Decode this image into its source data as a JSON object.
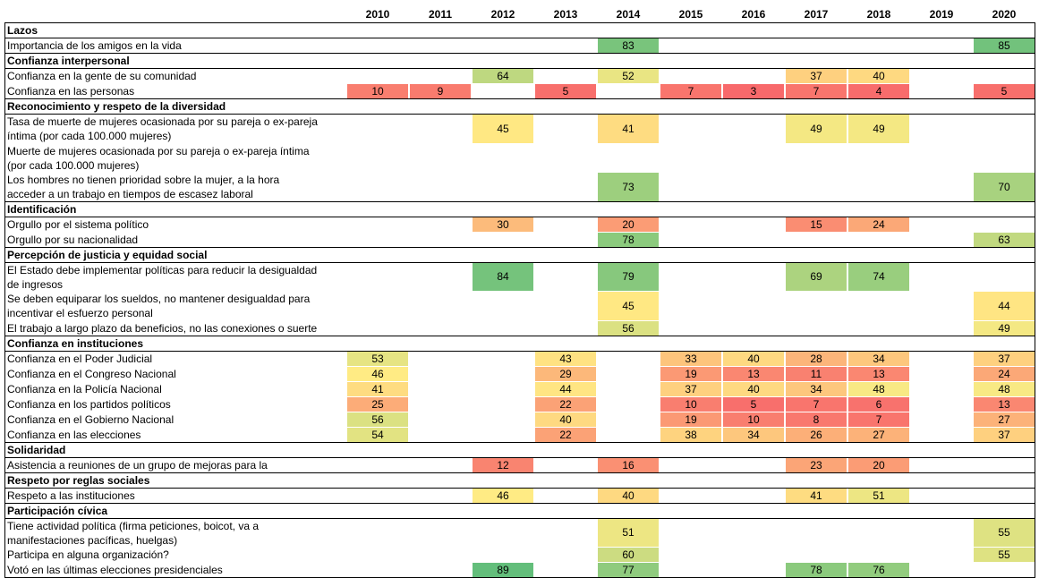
{
  "header": {
    "years": [
      2010,
      2011,
      2012,
      2013,
      2014,
      2015,
      2016,
      2017,
      2018,
      2019,
      2020
    ]
  },
  "color_scale": {
    "low": "#f8696b",
    "mid": "#ffeb84",
    "high": "#63be7b"
  },
  "sections": [
    {
      "title": "Lazos",
      "rows": [
        {
          "label": "Importancia de los amigos en la vida",
          "values": [
            null,
            null,
            null,
            null,
            83,
            null,
            null,
            null,
            null,
            null,
            85
          ]
        }
      ]
    },
    {
      "title": "Confianza interpersonal",
      "rows": [
        {
          "label": "Confianza en la gente de su comunidad",
          "values": [
            null,
            null,
            64,
            null,
            52,
            null,
            null,
            37,
            40,
            null,
            null
          ]
        },
        {
          "label": "Confianza en las personas",
          "values": [
            10,
            9,
            null,
            5,
            null,
            7,
            3,
            7,
            4,
            null,
            5
          ]
        }
      ]
    },
    {
      "title": "Reconocimiento y respeto de la diversidad",
      "rows": [
        {
          "label": "Tasa de muerte de mujeres ocasionada por su pareja o ex-pareja\níntima (por cada 100.000 mujeres)",
          "values": [
            null,
            null,
            45,
            null,
            41,
            null,
            null,
            49,
            49,
            null,
            null
          ]
        },
        {
          "label": "Muerte de mujeres ocasionada por su pareja o ex-pareja íntima\n(por cada 100.000 mujeres)",
          "values": [
            null,
            null,
            null,
            null,
            null,
            null,
            null,
            null,
            null,
            null,
            null
          ]
        },
        {
          "label": "Los hombres no tienen prioridad sobre la mujer, a la hora\nacceder a un trabajo en tiempos de escasez laboral",
          "values": [
            null,
            null,
            null,
            null,
            73,
            null,
            null,
            null,
            null,
            null,
            70
          ]
        }
      ]
    },
    {
      "title": "Identificación",
      "rows": [
        {
          "label": "Orgullo por el sistema político",
          "values": [
            null,
            null,
            30,
            null,
            20,
            null,
            null,
            15,
            24,
            null,
            null
          ]
        },
        {
          "label": "Orgullo por su nacionalidad",
          "values": [
            null,
            null,
            null,
            null,
            78,
            null,
            null,
            null,
            null,
            null,
            63
          ]
        }
      ]
    },
    {
      "title": "Percepción de justicia y equidad social",
      "rows": [
        {
          "label": "El Estado debe implementar políticas para reducir la desigualdad\nde ingresos",
          "values": [
            null,
            null,
            84,
            null,
            79,
            null,
            null,
            69,
            74,
            null,
            null
          ]
        },
        {
          "label": "Se deben equiparar los sueldos, no mantener desigualdad para\nincentivar el esfuerzo personal",
          "values": [
            null,
            null,
            null,
            null,
            45,
            null,
            null,
            null,
            null,
            null,
            44
          ]
        },
        {
          "label": "El trabajo a largo plazo da beneficios, no las conexiones o suerte",
          "values": [
            null,
            null,
            null,
            null,
            56,
            null,
            null,
            null,
            null,
            null,
            49
          ]
        }
      ]
    },
    {
      "title": "Confianza en instituciones",
      "rows": [
        {
          "label": "Confianza en el Poder Judicial",
          "values": [
            53,
            null,
            null,
            43,
            null,
            33,
            40,
            28,
            34,
            null,
            37
          ]
        },
        {
          "label": "Confianza en el Congreso Nacional",
          "values": [
            46,
            null,
            null,
            29,
            null,
            19,
            13,
            11,
            13,
            null,
            24
          ]
        },
        {
          "label": "Confianza en la Policía Nacional",
          "values": [
            41,
            null,
            null,
            44,
            null,
            37,
            40,
            34,
            48,
            null,
            48
          ]
        },
        {
          "label": "Confianza en los partidos políticos",
          "values": [
            25,
            null,
            null,
            22,
            null,
            10,
            5,
            7,
            6,
            null,
            13
          ]
        },
        {
          "label": "Confianza en el Gobierno Nacional",
          "values": [
            56,
            null,
            null,
            40,
            null,
            19,
            10,
            8,
            7,
            null,
            27
          ]
        },
        {
          "label": "Confianza en las elecciones",
          "values": [
            54,
            null,
            null,
            22,
            null,
            38,
            34,
            26,
            27,
            null,
            37
          ]
        }
      ]
    },
    {
      "title": "Solidaridad",
      "rows": [
        {
          "label": "Asistencia a reuniones de un grupo de mejoras para la",
          "values": [
            null,
            null,
            12,
            null,
            16,
            null,
            null,
            23,
            20,
            null,
            null
          ]
        }
      ]
    },
    {
      "title": "Respeto por reglas sociales",
      "rows": [
        {
          "label": "Respeto a las instituciones",
          "values": [
            null,
            null,
            46,
            null,
            40,
            null,
            null,
            41,
            51,
            null,
            null
          ]
        }
      ]
    },
    {
      "title": "Participación cívica",
      "rows": [
        {
          "label": "Tiene actividad política (firma peticiones, boicot, va a\nmanifestaciones pacíficas, huelgas)",
          "values": [
            null,
            null,
            null,
            null,
            51,
            null,
            null,
            null,
            null,
            null,
            55
          ]
        },
        {
          "label": "Participa en alguna organización?",
          "values": [
            null,
            null,
            null,
            null,
            60,
            null,
            null,
            null,
            null,
            null,
            55
          ]
        },
        {
          "label": "Votó en las últimas elecciones presidenciales",
          "values": [
            null,
            null,
            89,
            null,
            77,
            null,
            null,
            78,
            76,
            null,
            null
          ]
        }
      ]
    }
  ]
}
